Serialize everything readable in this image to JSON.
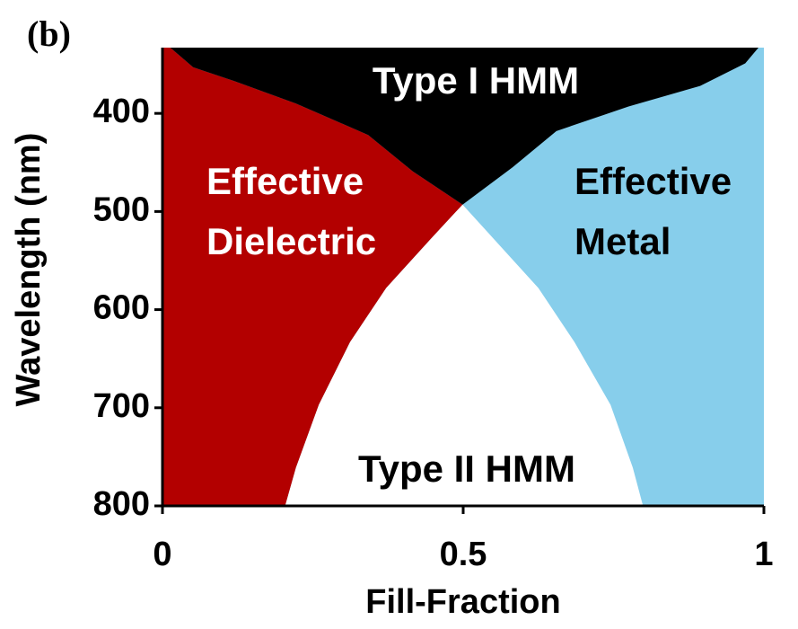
{
  "chart_data": {
    "type": "phase-diagram",
    "panel_label": "(b)",
    "xlabel": "Fill-Fraction",
    "ylabel": "Wavelength (nm)",
    "xlim": [
      0,
      1
    ],
    "ylim": [
      333,
      800
    ],
    "y_inverted": true,
    "xticks": [
      0,
      0.5,
      1
    ],
    "yticks": [
      400,
      500,
      600,
      700,
      800
    ],
    "regions": [
      {
        "name": "Effective Metal",
        "label_lines": [
          "Effective",
          "Metal"
        ],
        "color": "#87ceeb",
        "label_color": "#000000"
      },
      {
        "name": "Effective Dielectric",
        "label_lines": [
          "Effective",
          "Dielectric"
        ],
        "color": "#b30000",
        "label_color": "#ffffff"
      },
      {
        "name": "Type I HMM",
        "label_lines": [
          "Type I HMM"
        ],
        "color": "#000000",
        "label_color": "#ffffff"
      },
      {
        "name": "Type II HMM",
        "label_lines": [
          "Type II HMM"
        ],
        "color": "#ffffff",
        "label_color": "#000000"
      }
    ],
    "boundaries": [
      {
        "x": [
          0.013,
          0.051,
          0.119,
          0.222,
          0.342,
          0.416,
          0.499,
          0.582,
          0.655,
          0.775,
          0.894,
          0.969,
          0.991
        ],
        "y": [
          333,
          353,
          367,
          390,
          422,
          459,
          493,
          455,
          418,
          393,
          372,
          349,
          333
        ]
      },
      {
        "x": [
          0.204,
          0.222,
          0.26,
          0.312,
          0.372,
          0.446,
          0.499,
          0.551,
          0.625,
          0.685,
          0.745,
          0.782,
          0.799
        ],
        "y": [
          800,
          761,
          697,
          633,
          578,
          528,
          493,
          528,
          578,
          633,
          697,
          761,
          800
        ]
      }
    ]
  }
}
